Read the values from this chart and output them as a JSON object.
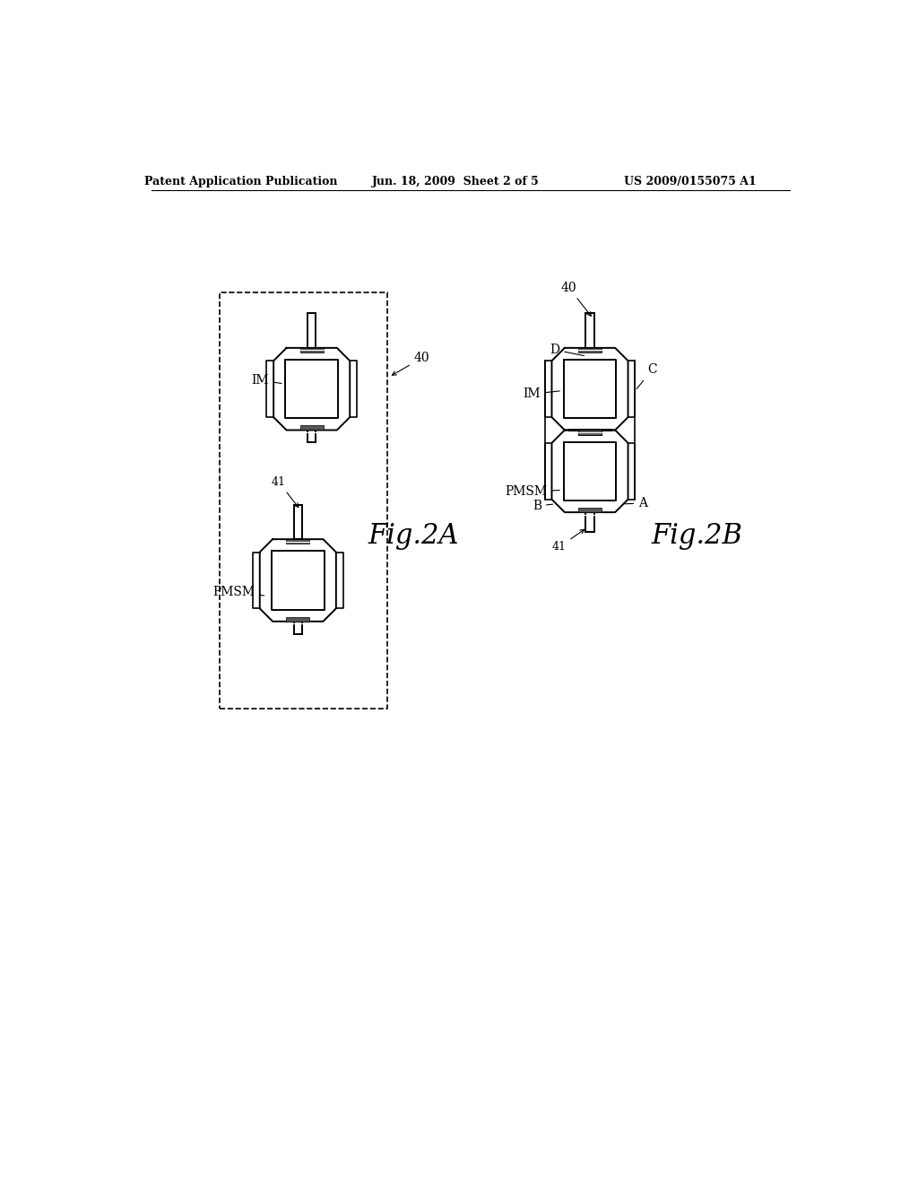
{
  "bg_color": "#ffffff",
  "line_color": "#000000",
  "header_left": "Patent Application Publication",
  "header_center": "Jun. 18, 2009  Sheet 2 of 5",
  "header_right": "US 2009/0155075 A1",
  "fig2a_label": "Fig.2A",
  "fig2b_label": "Fig.2B",
  "label_IM": "IM",
  "label_PMSM_left": "PMSM",
  "label_PMSM_right": "PMSM",
  "label_40": "40",
  "label_41": "41",
  "label_A": "A",
  "label_B": "B",
  "label_C": "C",
  "label_D": "D",
  "label_IM_right": "IM"
}
